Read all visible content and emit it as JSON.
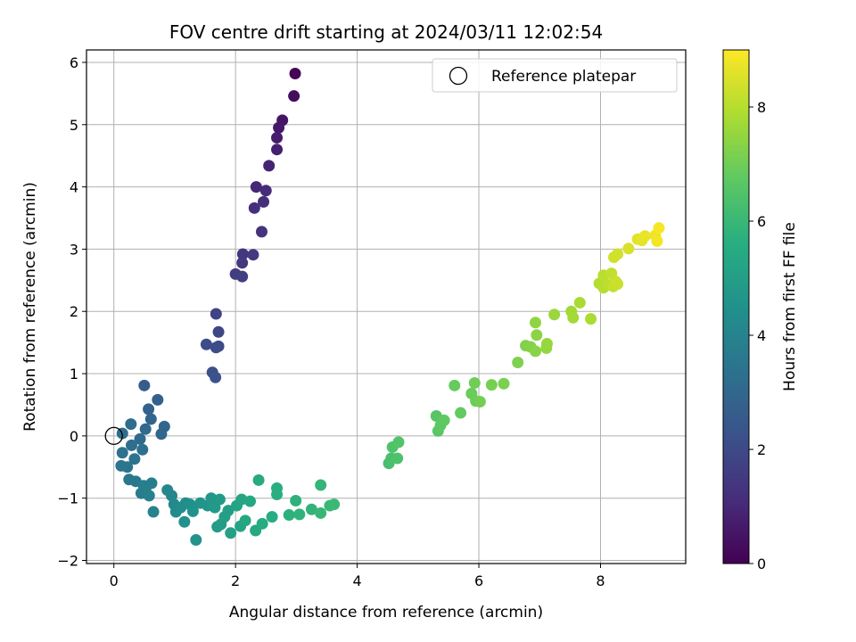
{
  "chart_data": {
    "type": "scatter",
    "title": "FOV centre drift starting at 2024/03/11 12:02:54",
    "xlabel": "Angular distance from reference (arcmin)",
    "ylabel": "Rotation from reference (arcmin)",
    "xlim": [
      -0.45,
      9.4
    ],
    "ylim": [
      -2.05,
      6.2
    ],
    "xticks": [
      0,
      2,
      4,
      6,
      8
    ],
    "yticks": [
      -2,
      -1,
      0,
      1,
      2,
      3,
      4,
      5,
      6
    ],
    "grid": true,
    "legend": {
      "position": "top-right",
      "label": "Reference platepar",
      "marker": "open-circle"
    },
    "reference_point": {
      "x": 0,
      "y": 0
    },
    "colorbar": {
      "label": "Hours from first FF file",
      "colormap": "viridis",
      "range": [
        0,
        9
      ],
      "ticks": [
        0,
        2,
        4,
        6,
        8
      ]
    },
    "points": [
      {
        "x": 2.98,
        "y": 5.82,
        "t": 0.1
      },
      {
        "x": 2.96,
        "y": 5.46,
        "t": 0.3
      },
      {
        "x": 2.77,
        "y": 5.07,
        "t": 0.5
      },
      {
        "x": 2.71,
        "y": 4.95,
        "t": 0.6
      },
      {
        "x": 2.68,
        "y": 4.79,
        "t": 0.7
      },
      {
        "x": 2.68,
        "y": 4.6,
        "t": 0.8
      },
      {
        "x": 2.55,
        "y": 4.34,
        "t": 0.9
      },
      {
        "x": 2.34,
        "y": 4.0,
        "t": 1.0
      },
      {
        "x": 2.5,
        "y": 3.94,
        "t": 1.1
      },
      {
        "x": 2.46,
        "y": 3.76,
        "t": 1.15
      },
      {
        "x": 2.31,
        "y": 3.66,
        "t": 1.2
      },
      {
        "x": 2.43,
        "y": 3.28,
        "t": 1.3
      },
      {
        "x": 2.12,
        "y": 2.92,
        "t": 1.4
      },
      {
        "x": 2.11,
        "y": 2.78,
        "t": 1.45
      },
      {
        "x": 2.29,
        "y": 2.91,
        "t": 1.5
      },
      {
        "x": 2.0,
        "y": 2.6,
        "t": 1.6
      },
      {
        "x": 2.11,
        "y": 2.56,
        "t": 1.65
      },
      {
        "x": 1.68,
        "y": 1.96,
        "t": 1.8
      },
      {
        "x": 1.72,
        "y": 1.67,
        "t": 1.9
      },
      {
        "x": 1.72,
        "y": 1.44,
        "t": 2.0
      },
      {
        "x": 1.52,
        "y": 1.47,
        "t": 2.05
      },
      {
        "x": 1.68,
        "y": 1.42,
        "t": 2.1
      },
      {
        "x": 1.62,
        "y": 1.02,
        "t": 2.2
      },
      {
        "x": 1.67,
        "y": 0.94,
        "t": 2.3
      },
      {
        "x": 0.5,
        "y": 0.81,
        "t": 2.6
      },
      {
        "x": 0.72,
        "y": 0.58,
        "t": 2.7
      },
      {
        "x": 0.57,
        "y": 0.43,
        "t": 2.8
      },
      {
        "x": 0.61,
        "y": 0.27,
        "t": 2.9
      },
      {
        "x": 0.83,
        "y": 0.15,
        "t": 2.95
      },
      {
        "x": 0.78,
        "y": 0.03,
        "t": 3.0
      },
      {
        "x": 0.52,
        "y": 0.11,
        "t": 3.05
      },
      {
        "x": 0.43,
        "y": -0.05,
        "t": 3.1
      },
      {
        "x": 0.28,
        "y": 0.19,
        "t": 3.15
      },
      {
        "x": 0.14,
        "y": 0.04,
        "t": 3.2
      },
      {
        "x": 0.29,
        "y": -0.15,
        "t": 3.25
      },
      {
        "x": 0.47,
        "y": -0.22,
        "t": 3.3
      },
      {
        "x": 0.14,
        "y": -0.27,
        "t": 3.35
      },
      {
        "x": 0.34,
        "y": -0.37,
        "t": 3.4
      },
      {
        "x": 0.22,
        "y": -0.5,
        "t": 3.45
      },
      {
        "x": 0.12,
        "y": -0.48,
        "t": 3.5
      },
      {
        "x": 0.25,
        "y": -0.7,
        "t": 3.55
      },
      {
        "x": 0.36,
        "y": -0.73,
        "t": 3.6
      },
      {
        "x": 0.45,
        "y": -0.92,
        "t": 3.7
      },
      {
        "x": 0.53,
        "y": -0.82,
        "t": 3.75
      },
      {
        "x": 0.49,
        "y": -0.8,
        "t": 3.8
      },
      {
        "x": 0.62,
        "y": -0.76,
        "t": 3.85
      },
      {
        "x": 0.58,
        "y": -0.96,
        "t": 3.9
      },
      {
        "x": 0.65,
        "y": -1.22,
        "t": 4.0
      },
      {
        "x": 0.88,
        "y": -0.87,
        "t": 4.1
      },
      {
        "x": 0.95,
        "y": -0.96,
        "t": 4.15
      },
      {
        "x": 0.99,
        "y": -1.1,
        "t": 4.2
      },
      {
        "x": 1.02,
        "y": -1.22,
        "t": 4.3
      },
      {
        "x": 1.1,
        "y": -1.15,
        "t": 4.35
      },
      {
        "x": 1.18,
        "y": -1.08,
        "t": 4.4
      },
      {
        "x": 1.25,
        "y": -1.1,
        "t": 4.45
      },
      {
        "x": 1.16,
        "y": -1.38,
        "t": 4.5
      },
      {
        "x": 1.3,
        "y": -1.21,
        "t": 4.55
      },
      {
        "x": 1.35,
        "y": -1.67,
        "t": 4.6
      },
      {
        "x": 1.42,
        "y": -1.08,
        "t": 4.65
      },
      {
        "x": 1.54,
        "y": -1.12,
        "t": 4.7
      },
      {
        "x": 1.6,
        "y": -1.0,
        "t": 4.75
      },
      {
        "x": 1.66,
        "y": -1.15,
        "t": 4.8
      },
      {
        "x": 1.74,
        "y": -1.02,
        "t": 4.85
      },
      {
        "x": 1.7,
        "y": -1.46,
        "t": 4.9
      },
      {
        "x": 1.76,
        "y": -1.42,
        "t": 4.95
      },
      {
        "x": 1.82,
        "y": -1.3,
        "t": 5.0
      },
      {
        "x": 1.88,
        "y": -1.2,
        "t": 5.05
      },
      {
        "x": 1.92,
        "y": -1.56,
        "t": 5.1
      },
      {
        "x": 2.02,
        "y": -1.12,
        "t": 5.15
      },
      {
        "x": 2.08,
        "y": -1.45,
        "t": 5.2
      },
      {
        "x": 2.1,
        "y": -1.02,
        "t": 5.25
      },
      {
        "x": 2.16,
        "y": -1.36,
        "t": 5.3
      },
      {
        "x": 2.24,
        "y": -1.05,
        "t": 5.35
      },
      {
        "x": 2.33,
        "y": -1.52,
        "t": 5.4
      },
      {
        "x": 2.38,
        "y": -0.71,
        "t": 5.45
      },
      {
        "x": 2.44,
        "y": -1.41,
        "t": 5.5
      },
      {
        "x": 2.6,
        "y": -1.3,
        "t": 5.55
      },
      {
        "x": 2.68,
        "y": -0.84,
        "t": 5.6
      },
      {
        "x": 2.68,
        "y": -0.94,
        "t": 5.65
      },
      {
        "x": 2.88,
        "y": -1.27,
        "t": 5.7
      },
      {
        "x": 2.99,
        "y": -1.04,
        "t": 5.75
      },
      {
        "x": 3.05,
        "y": -1.26,
        "t": 5.8
      },
      {
        "x": 3.25,
        "y": -1.18,
        "t": 5.85
      },
      {
        "x": 3.4,
        "y": -0.79,
        "t": 5.9
      },
      {
        "x": 3.4,
        "y": -1.24,
        "t": 5.95
      },
      {
        "x": 3.55,
        "y": -1.12,
        "t": 6.0
      },
      {
        "x": 3.62,
        "y": -1.1,
        "t": 6.05
      },
      {
        "x": 4.52,
        "y": -0.44,
        "t": 6.3
      },
      {
        "x": 4.56,
        "y": -0.36,
        "t": 6.35
      },
      {
        "x": 4.66,
        "y": -0.36,
        "t": 6.4
      },
      {
        "x": 4.58,
        "y": -0.18,
        "t": 6.45
      },
      {
        "x": 4.68,
        "y": -0.1,
        "t": 6.5
      },
      {
        "x": 5.3,
        "y": 0.32,
        "t": 6.6
      },
      {
        "x": 5.33,
        "y": 0.08,
        "t": 6.65
      },
      {
        "x": 5.37,
        "y": 0.17,
        "t": 6.7
      },
      {
        "x": 5.43,
        "y": 0.25,
        "t": 6.75
      },
      {
        "x": 5.7,
        "y": 0.37,
        "t": 6.8
      },
      {
        "x": 5.6,
        "y": 0.81,
        "t": 6.85
      },
      {
        "x": 5.88,
        "y": 0.68,
        "t": 6.9
      },
      {
        "x": 5.95,
        "y": 0.56,
        "t": 6.95
      },
      {
        "x": 5.93,
        "y": 0.85,
        "t": 7.0
      },
      {
        "x": 6.02,
        "y": 0.55,
        "t": 7.05
      },
      {
        "x": 6.21,
        "y": 0.82,
        "t": 7.1
      },
      {
        "x": 6.41,
        "y": 0.84,
        "t": 7.15
      },
      {
        "x": 6.64,
        "y": 1.18,
        "t": 7.2
      },
      {
        "x": 6.77,
        "y": 1.45,
        "t": 7.25
      },
      {
        "x": 6.85,
        "y": 1.43,
        "t": 7.3
      },
      {
        "x": 6.93,
        "y": 1.36,
        "t": 7.35
      },
      {
        "x": 6.95,
        "y": 1.62,
        "t": 7.4
      },
      {
        "x": 6.93,
        "y": 1.82,
        "t": 7.45
      },
      {
        "x": 7.11,
        "y": 1.41,
        "t": 7.5
      },
      {
        "x": 7.12,
        "y": 1.48,
        "t": 7.55
      },
      {
        "x": 7.24,
        "y": 1.95,
        "t": 7.6
      },
      {
        "x": 7.52,
        "y": 2.0,
        "t": 7.7
      },
      {
        "x": 7.55,
        "y": 1.9,
        "t": 7.75
      },
      {
        "x": 7.66,
        "y": 2.14,
        "t": 7.8
      },
      {
        "x": 7.84,
        "y": 1.88,
        "t": 7.85
      },
      {
        "x": 7.98,
        "y": 2.45,
        "t": 7.95
      },
      {
        "x": 8.05,
        "y": 2.38,
        "t": 8.0
      },
      {
        "x": 8.05,
        "y": 2.58,
        "t": 8.05
      },
      {
        "x": 8.12,
        "y": 2.43,
        "t": 8.1
      },
      {
        "x": 8.18,
        "y": 2.61,
        "t": 8.15
      },
      {
        "x": 8.21,
        "y": 2.4,
        "t": 8.2
      },
      {
        "x": 8.25,
        "y": 2.48,
        "t": 8.25
      },
      {
        "x": 8.28,
        "y": 2.44,
        "t": 8.3
      },
      {
        "x": 8.22,
        "y": 2.87,
        "t": 8.35
      },
      {
        "x": 8.28,
        "y": 2.92,
        "t": 8.4
      },
      {
        "x": 8.46,
        "y": 3.01,
        "t": 8.5
      },
      {
        "x": 8.61,
        "y": 3.16,
        "t": 8.6
      },
      {
        "x": 8.68,
        "y": 3.14,
        "t": 8.65
      },
      {
        "x": 8.73,
        "y": 3.21,
        "t": 8.7
      },
      {
        "x": 8.9,
        "y": 3.22,
        "t": 8.8
      },
      {
        "x": 8.93,
        "y": 3.13,
        "t": 8.85
      },
      {
        "x": 8.96,
        "y": 3.34,
        "t": 8.9
      }
    ]
  }
}
